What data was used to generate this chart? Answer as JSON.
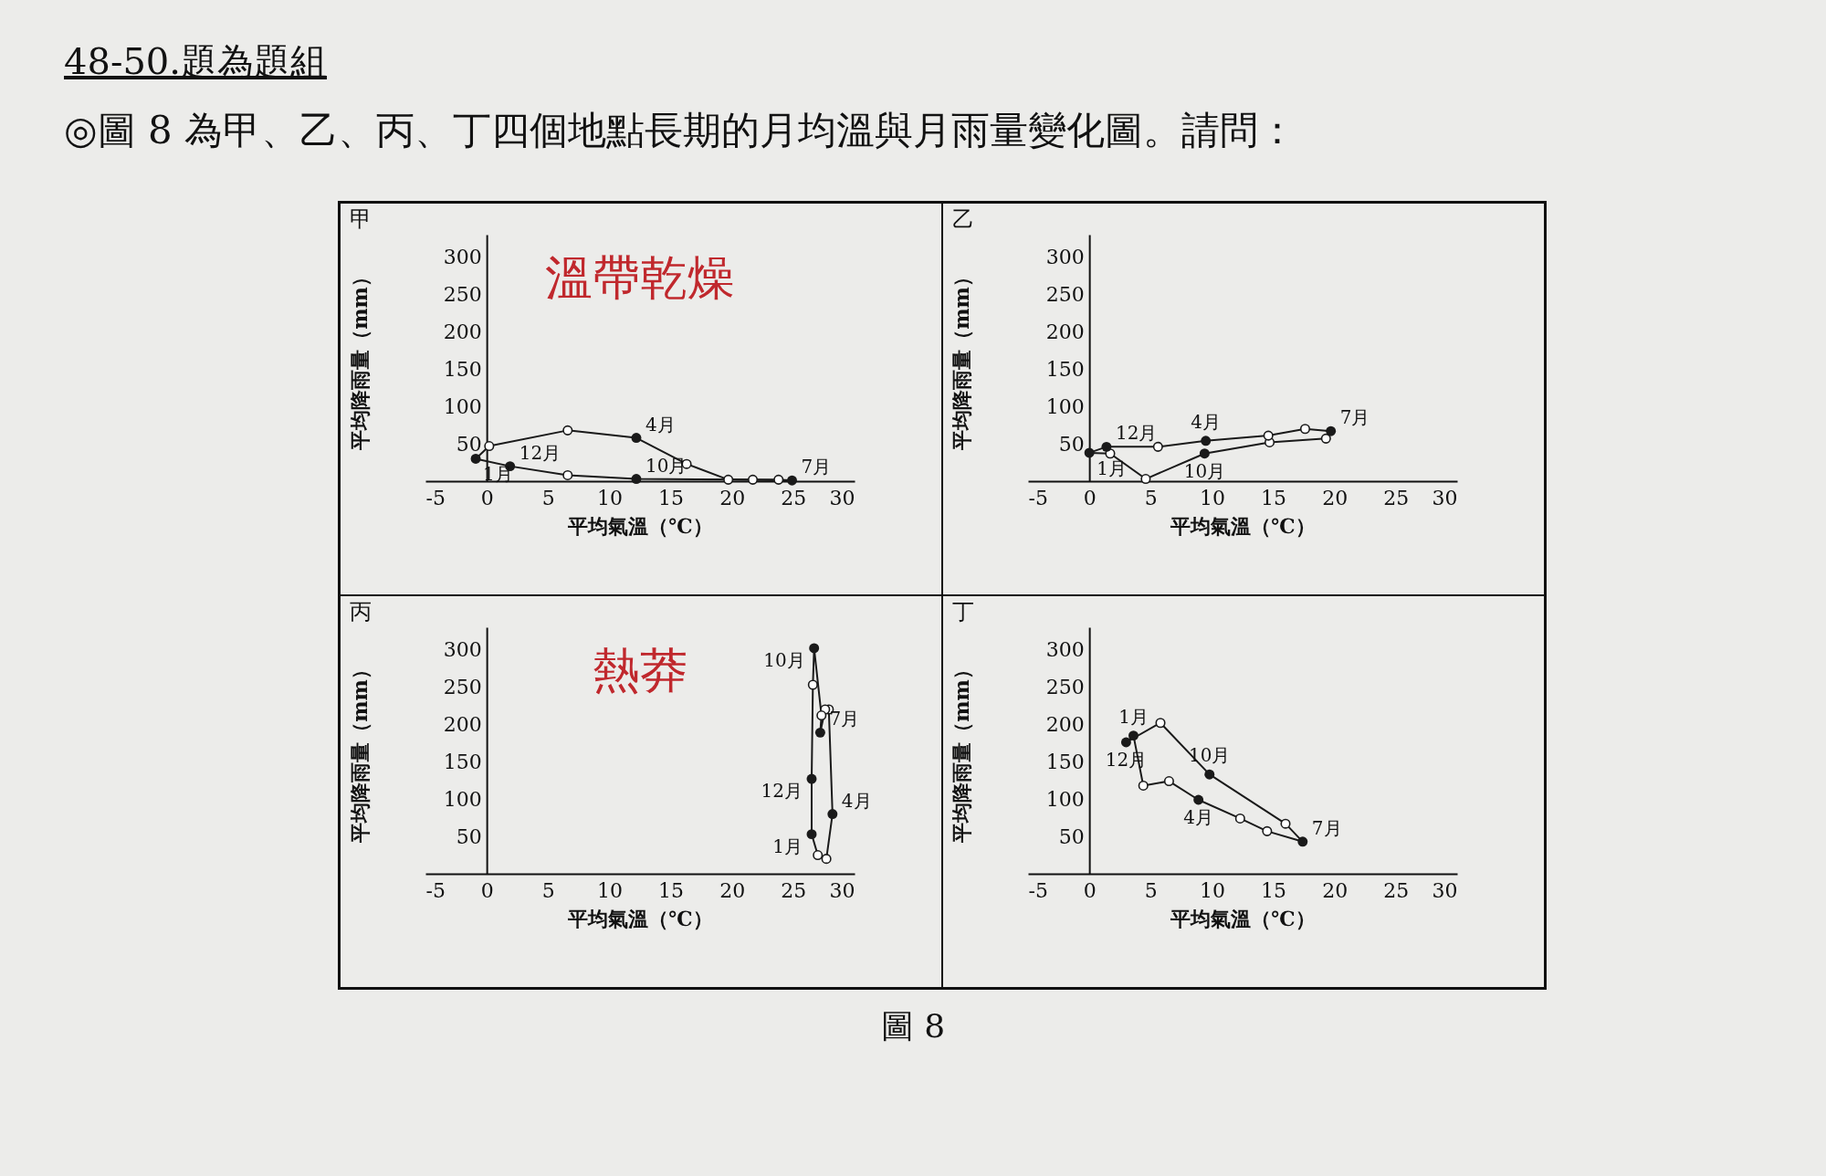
{
  "chart_data": [
    {
      "type": "line",
      "title": "甲",
      "xlabel": "平均氣溫（℃）",
      "ylabel": "平均降雨量（mm）",
      "xlim": [
        -5,
        30
      ],
      "xticks": [
        -5,
        0,
        5,
        10,
        15,
        20,
        25,
        30
      ],
      "ylim": [
        0,
        330
      ],
      "yticks": [
        50,
        100,
        150,
        200,
        250,
        300
      ],
      "marker": "circle",
      "line_style": "solid",
      "series": [
        {
          "type": "line",
          "marker": "none",
          "color": "#1a1a1a",
          "x": [
            -0.9,
            0.2,
            6.6,
            12.2,
            16.3,
            19.7,
            24.9
          ],
          "values": [
            30,
            47,
            68,
            58,
            23,
            2,
            1
          ]
        },
        {
          "type": "line",
          "marker": "none",
          "color": "#1a1a1a",
          "x": [
            24.9,
            23.8,
            21.7,
            12.2,
            6.6,
            1.9,
            -0.9
          ],
          "values": [
            1,
            2,
            2,
            3,
            8,
            20,
            30
          ]
        },
        {
          "type": "scatter",
          "color": "#1a1a1a",
          "x": [
            0.2,
            6.6,
            16.3,
            19.7,
            23.8,
            21.7,
            6.6
          ],
          "values": [
            47,
            68,
            23,
            2,
            2,
            2,
            8
          ]
        },
        {
          "type": "scatter",
          "color": "#1a1a1a",
          "x": [
            -0.9,
            12.2,
            24.9,
            12.2,
            1.9
          ],
          "values": [
            30,
            58,
            1,
            3,
            20
          ]
        }
      ],
      "annotations": [
        {
          "text": "1月",
          "x": -0.9,
          "y": 30
        },
        {
          "text": "4月",
          "x": 12.2,
          "y": 58
        },
        {
          "text": "7月",
          "x": 24.9,
          "y": 1
        },
        {
          "text": "10月",
          "x": 12.2,
          "y": 3
        },
        {
          "text": "12月",
          "x": 1.9,
          "y": 20
        },
        "溫帶乾燥"
      ]
    },
    {
      "type": "line",
      "title": "乙",
      "xlabel": "平均氣溫（℃）",
      "ylabel": "平均降雨量（mm）",
      "xlim": [
        -5,
        30
      ],
      "xticks": [
        -5,
        0,
        5,
        10,
        15,
        20,
        25,
        30
      ],
      "ylim": [
        0,
        330
      ],
      "yticks": [
        50,
        100,
        150,
        200,
        250,
        300
      ],
      "marker": "circle",
      "line_style": "solid",
      "series": [
        {
          "type": "line",
          "marker": "none",
          "color": "#1a1a1a",
          "x": [
            0,
            1.7,
            4.6,
            9.4,
            14.7,
            19.3,
            19.7
          ],
          "values": [
            38,
            37,
            3,
            37,
            52,
            57,
            67
          ]
        },
        {
          "type": "line",
          "marker": "none",
          "color": "#1a1a1a",
          "x": [
            19.7,
            17.6,
            14.6,
            9.5,
            5.6,
            1.4,
            0
          ],
          "values": [
            67,
            70,
            61,
            54,
            46,
            46,
            38
          ]
        },
        {
          "type": "scatter",
          "color": "#1a1a1a",
          "x": [
            1.7,
            4.6,
            14.7,
            19.3,
            17.6,
            14.6,
            5.6
          ],
          "values": [
            37,
            3,
            52,
            57,
            70,
            61,
            46
          ]
        },
        {
          "type": "scatter",
          "color": "#1a1a1a",
          "x": [
            0,
            9.4,
            19.7,
            9.5,
            1.4
          ],
          "values": [
            38,
            37,
            67,
            54,
            46
          ]
        }
      ],
      "annotations": [
        {
          "text": "1月",
          "x": 0,
          "y": 38
        },
        {
          "text": "4月",
          "x": 9.5,
          "y": 54
        },
        {
          "text": "7月",
          "x": 19.7,
          "y": 67
        },
        {
          "text": "10月",
          "x": 9.4,
          "y": 37
        },
        {
          "text": "12月",
          "x": 1.4,
          "y": 46
        }
      ]
    },
    {
      "type": "line",
      "title": "丙",
      "xlabel": "平均氣溫（℃）",
      "ylabel": "平均降雨量（mm）",
      "xlim": [
        -5,
        30
      ],
      "xticks": [
        -5,
        0,
        5,
        10,
        15,
        20,
        25,
        30
      ],
      "ylim": [
        0,
        330
      ],
      "yticks": [
        50,
        100,
        150,
        200,
        250,
        300
      ],
      "marker": "circle",
      "line_style": "solid",
      "series": [
        {
          "type": "line",
          "marker": "none",
          "color": "#1a1a1a",
          "x": [
            26.5,
            27,
            27.7,
            28.2
          ],
          "values": [
            53,
            25,
            20,
            80
          ]
        },
        {
          "type": "line",
          "marker": "none",
          "color": "#1a1a1a",
          "x": [
            28.2,
            27.9,
            27.6,
            27.2
          ],
          "values": [
            80,
            220,
            220,
            189
          ]
        },
        {
          "type": "line",
          "marker": "none",
          "color": "#1a1a1a",
          "x": [
            27.2,
            27.3
          ],
          "values": [
            189,
            212
          ]
        },
        {
          "type": "line",
          "marker": "none",
          "color": "#1a1a1a",
          "x": [
            27.3,
            26.7,
            26.6,
            26.5
          ],
          "values": [
            212,
            302,
            253,
            127
          ]
        },
        {
          "type": "line",
          "marker": "none",
          "color": "#1a1a1a",
          "x": [
            26.5,
            26.5
          ],
          "values": [
            127,
            53
          ]
        },
        {
          "type": "scatter",
          "color": "#1a1a1a",
          "x": [
            27,
            27.7,
            27.9,
            27.6,
            27.3,
            26.6
          ],
          "values": [
            25,
            20,
            220,
            220,
            212,
            253
          ]
        },
        {
          "type": "scatter",
          "color": "#1a1a1a",
          "x": [
            26.5,
            28.2,
            27.2,
            26.7,
            26.5
          ],
          "values": [
            53,
            80,
            189,
            302,
            127
          ]
        }
      ],
      "annotations": [
        {
          "text": "1月",
          "x": 26.5,
          "y": 53
        },
        {
          "text": "4月",
          "x": 28.2,
          "y": 80
        },
        {
          "text": "7月",
          "x": 27.2,
          "y": 189
        },
        {
          "text": "10月",
          "x": 26.7,
          "y": 302
        },
        {
          "text": "12月",
          "x": 26.5,
          "y": 127
        },
        "熱莽"
      ]
    },
    {
      "type": "line",
      "title": "丁",
      "xlabel": "平均氣溫（℃）",
      "ylabel": "平均降雨量（mm）",
      "xlim": [
        -5,
        30
      ],
      "xticks": [
        -5,
        0,
        5,
        10,
        15,
        20,
        25,
        30
      ],
      "ylim": [
        0,
        330
      ],
      "yticks": [
        50,
        100,
        150,
        200,
        250,
        300
      ],
      "marker": "circle",
      "line_style": "solid",
      "series": [
        {
          "type": "line",
          "marker": "none",
          "color": "#1a1a1a",
          "x": [
            3.0,
            3.6,
            4.4,
            6.5,
            8.9,
            12.3,
            14.5,
            17.4
          ],
          "values": [
            176,
            185,
            118,
            124,
            99,
            74,
            57,
            43
          ]
        },
        {
          "type": "line",
          "marker": "none",
          "color": "#1a1a1a",
          "x": [
            17.4,
            16.0,
            9.8,
            5.8,
            3.0
          ],
          "values": [
            43,
            67,
            133,
            202,
            176
          ]
        },
        {
          "type": "scatter",
          "color": "#1a1a1a",
          "x": [
            4.4,
            6.5,
            12.3,
            14.5,
            16.0,
            5.8
          ],
          "values": [
            118,
            124,
            74,
            57,
            67,
            202
          ]
        },
        {
          "type": "scatter",
          "color": "#1a1a1a",
          "x": [
            3.6,
            8.9,
            17.4,
            9.8,
            3.0
          ],
          "values": [
            185,
            99,
            43,
            133,
            176
          ]
        }
      ],
      "annotations": [
        {
          "text": "1月",
          "x": 3.6,
          "y": 185
        },
        {
          "text": "4月",
          "x": 8.9,
          "y": 99
        },
        {
          "text": "7月",
          "x": 17.4,
          "y": 43
        },
        {
          "text": "10月",
          "x": 9.8,
          "y": 133
        },
        {
          "text": "12月",
          "x": 3.0,
          "y": 176
        }
      ]
    },
    {
      "type": "other",
      "title": "48-50.題為題組",
      "annotations": [
        "◎圖 8 為甲、乙、丙、丁四個地點長期的月均溫與月雨量變化圖。請問：",
        "圖 8"
      ]
    }
  ]
}
